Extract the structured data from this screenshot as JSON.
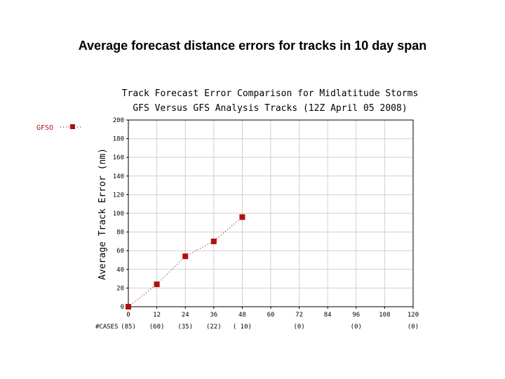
{
  "slide_title": "Average forecast distance errors for tracks in 10 day span",
  "chart_data": {
    "type": "line",
    "title": "Track Forecast Error Comparison for Midlatitude Storms",
    "subtitle": "GFS Versus GFS Analysis Tracks (12Z April 05 2008)",
    "ylabel": "Average Track Error (nm)",
    "xlabel": "",
    "x": [
      0,
      12,
      24,
      36,
      48
    ],
    "xlim": [
      0,
      120
    ],
    "ylim": [
      0,
      200
    ],
    "x_ticks": [
      "0",
      "12",
      "24",
      "36",
      "48",
      "60",
      "72",
      "84",
      "96",
      "108",
      "120"
    ],
    "y_ticks": [
      "0",
      "20",
      "40",
      "60",
      "80",
      "100",
      "120",
      "140",
      "160",
      "180",
      "200"
    ],
    "grid": true,
    "legend_position": "left",
    "series": [
      {
        "name": "GFSO",
        "color": "#b01010",
        "values": [
          0,
          24,
          54,
          70,
          96
        ]
      }
    ],
    "cases_label": "#CASES",
    "cases": [
      "(85)",
      "(60)",
      "(35)",
      "(22)",
      "( 10)",
      "",
      "(0)",
      "",
      "(0)",
      "",
      "(0)"
    ]
  }
}
